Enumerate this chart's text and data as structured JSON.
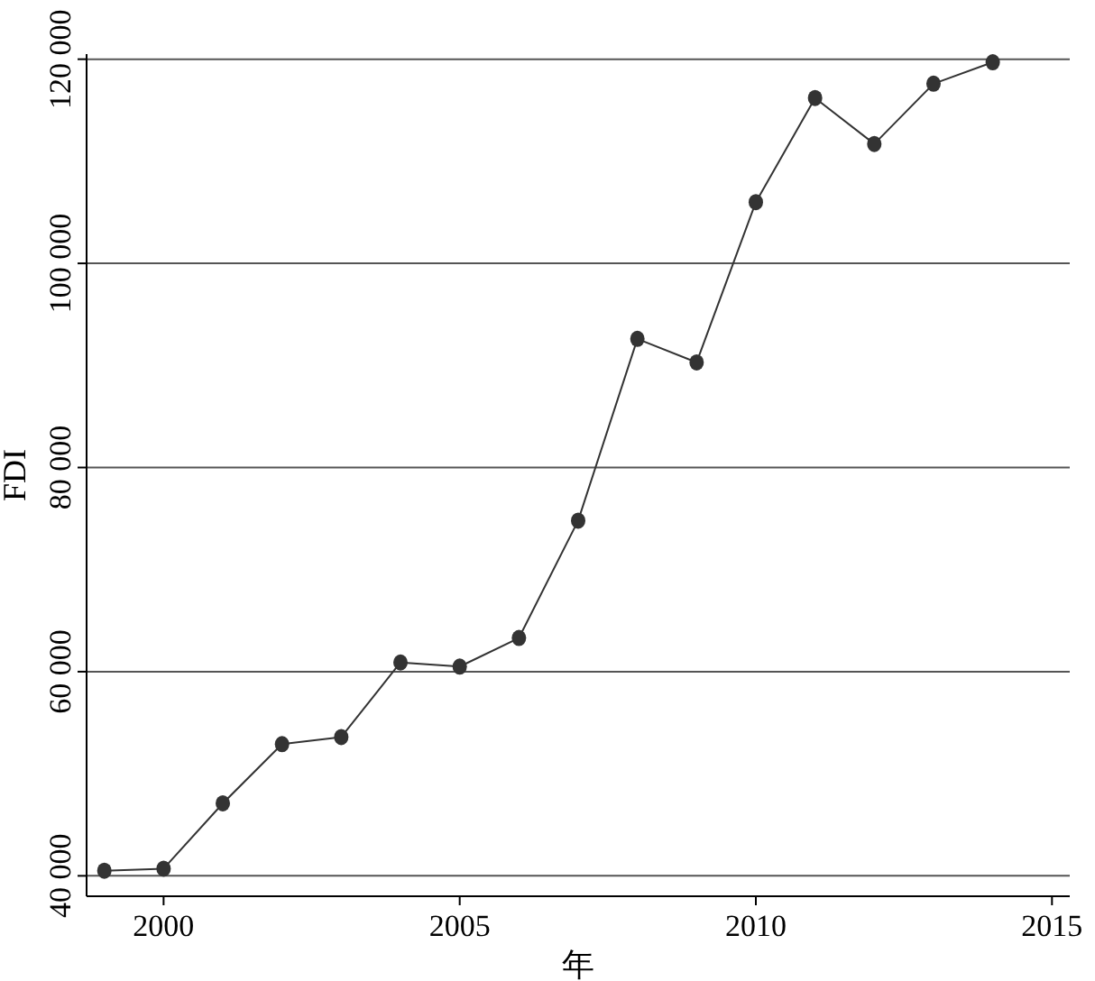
{
  "chart_data": {
    "type": "line",
    "xlabel": "年",
    "ylabel": "FDI",
    "x": [
      1999,
      2000,
      2001,
      2002,
      2003,
      2004,
      2005,
      2006,
      2007,
      2008,
      2009,
      2010,
      2011,
      2012,
      2013,
      2014
    ],
    "series": [
      {
        "color": "#333333",
        "values": [
          40500,
          40700,
          47100,
          52900,
          53600,
          60900,
          60500,
          63300,
          74800,
          92600,
          90300,
          106000,
          116200,
          111700,
          117600,
          119700
        ]
      }
    ],
    "xlim": [
      1998.7,
      2015.3
    ],
    "xticks": [
      2000,
      2005,
      2010,
      2015
    ],
    "ylim": [
      38000,
      120500
    ],
    "yticks": [
      {
        "value": 40000,
        "label": "40 000"
      },
      {
        "value": 60000,
        "label": "60 000"
      },
      {
        "value": 80000,
        "label": "80 000"
      },
      {
        "value": 100000,
        "label": "100 000"
      },
      {
        "value": 120000,
        "label": "120 000"
      }
    ],
    "grid": "y",
    "marker": "circle",
    "line_style": "solid"
  }
}
